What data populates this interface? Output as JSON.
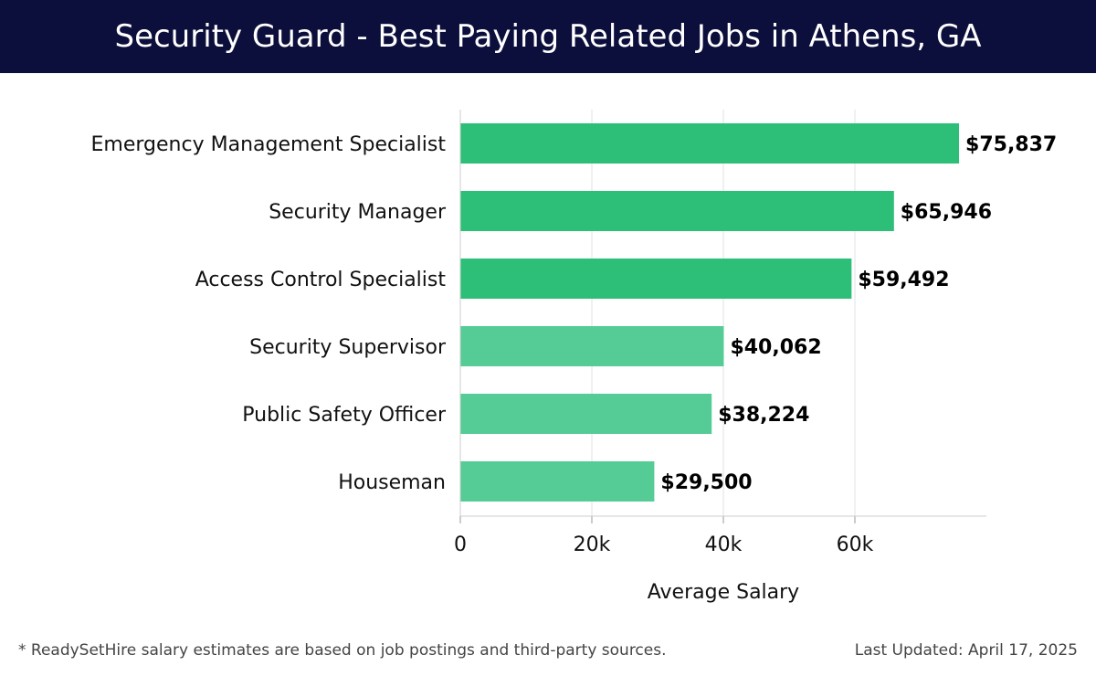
{
  "header": {
    "title": "Security Guard - Best Paying Related Jobs in Athens, GA"
  },
  "footer": {
    "note": "* ReadySetHire salary estimates are based on job postings and third-party sources.",
    "updated": "Last Updated: April 17, 2025"
  },
  "colors": {
    "header_bg": "#0c0e3b",
    "bar_high": "#2dbf78",
    "bar_low": "#55cc95",
    "grid": "#e2e2e2"
  },
  "chart_data": {
    "type": "bar",
    "orientation": "horizontal",
    "title": "",
    "xlabel": "Average Salary",
    "ylabel": "",
    "xlim": [
      0,
      80000
    ],
    "xticks": [
      0,
      20000,
      40000,
      60000
    ],
    "xtick_labels": [
      "0",
      "20k",
      "40k",
      "60k"
    ],
    "grid": true,
    "categories": [
      "Emergency Management Specialist",
      "Security Manager",
      "Access Control Specialist",
      "Security Supervisor",
      "Public Safety Officer",
      "Houseman"
    ],
    "values": [
      75837,
      65946,
      59492,
      40062,
      38224,
      29500
    ],
    "value_labels": [
      "$75,837",
      "$65,946",
      "$59,492",
      "$40,062",
      "$38,224",
      "$29,500"
    ]
  }
}
